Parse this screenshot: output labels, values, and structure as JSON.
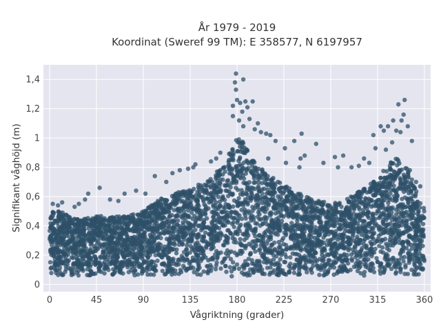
{
  "chart_data": {
    "type": "scatter",
    "title_line1": "År 1979 - 2019",
    "title_line2": "Koordinat (Sweref 99 TM): E 358577, N 6197957",
    "xlabel": "Vågriktning (grader)",
    "ylabel": "Signifikant våghöjd (m)",
    "xlim": [
      -6,
      366
    ],
    "ylim": [
      -0.05,
      1.5
    ],
    "x_ticks": [
      0,
      45,
      90,
      135,
      180,
      225,
      270,
      315,
      360
    ],
    "x_tick_labels": [
      "0",
      "45",
      "90",
      "135",
      "180",
      "225",
      "270",
      "315",
      "360"
    ],
    "y_ticks": [
      0,
      0.2,
      0.4,
      0.6,
      0.8,
      1,
      1.2,
      1.4
    ],
    "y_tick_labels": [
      "0",
      "0,2",
      "0,4",
      "0,6",
      "0,8",
      "1",
      "1,2",
      "1,4"
    ],
    "grid": true,
    "marker_color": "#2e5068",
    "plot_background": "#e5e5f0",
    "envelope": {
      "x": [
        0,
        10,
        20,
        30,
        45,
        60,
        75,
        90,
        105,
        120,
        135,
        150,
        165,
        175,
        180,
        185,
        195,
        210,
        225,
        240,
        255,
        270,
        285,
        300,
        315,
        325,
        335,
        345,
        355,
        360
      ],
      "y_max": [
        0.52,
        0.5,
        0.46,
        0.45,
        0.47,
        0.46,
        0.47,
        0.5,
        0.58,
        0.62,
        0.66,
        0.7,
        0.8,
        0.95,
        1.0,
        0.98,
        0.85,
        0.75,
        0.68,
        0.62,
        0.58,
        0.55,
        0.58,
        0.65,
        0.72,
        0.82,
        0.88,
        0.78,
        0.58,
        0.52
      ],
      "y_min": [
        0.06,
        0.06,
        0.06,
        0.06,
        0.06,
        0.06,
        0.06,
        0.06,
        0.06,
        0.06,
        0.06,
        0.06,
        0.06,
        0.05,
        0.04,
        0.05,
        0.05,
        0.06,
        0.06,
        0.06,
        0.06,
        0.06,
        0.06,
        0.06,
        0.06,
        0.06,
        0.06,
        0.06,
        0.06,
        0.06
      ]
    },
    "outliers": [
      {
        "x": 179,
        "y": 1.44
      },
      {
        "x": 186,
        "y": 1.4
      },
      {
        "x": 178,
        "y": 1.38
      },
      {
        "x": 179,
        "y": 1.33
      },
      {
        "x": 180,
        "y": 1.26
      },
      {
        "x": 183,
        "y": 1.24
      },
      {
        "x": 188,
        "y": 1.25
      },
      {
        "x": 195,
        "y": 1.25
      },
      {
        "x": 190,
        "y": 1.21
      },
      {
        "x": 176,
        "y": 1.22
      },
      {
        "x": 185,
        "y": 1.18
      },
      {
        "x": 176,
        "y": 1.15
      },
      {
        "x": 192,
        "y": 1.13
      },
      {
        "x": 182,
        "y": 1.12
      },
      {
        "x": 200,
        "y": 1.1
      },
      {
        "x": 186,
        "y": 1.08
      },
      {
        "x": 197,
        "y": 1.06
      },
      {
        "x": 203,
        "y": 1.04
      },
      {
        "x": 212,
        "y": 1.02
      },
      {
        "x": 208,
        "y": 1.03
      },
      {
        "x": 242,
        "y": 1.03
      },
      {
        "x": 217,
        "y": 0.98
      },
      {
        "x": 235,
        "y": 0.98
      },
      {
        "x": 256,
        "y": 0.96
      },
      {
        "x": 226,
        "y": 0.93
      },
      {
        "x": 245,
        "y": 0.88
      },
      {
        "x": 241,
        "y": 0.86
      },
      {
        "x": 274,
        "y": 0.87
      },
      {
        "x": 282,
        "y": 0.88
      },
      {
        "x": 210,
        "y": 0.86
      },
      {
        "x": 227,
        "y": 0.83
      },
      {
        "x": 240,
        "y": 0.8
      },
      {
        "x": 263,
        "y": 0.83
      },
      {
        "x": 277,
        "y": 0.8
      },
      {
        "x": 290,
        "y": 0.8
      },
      {
        "x": 297,
        "y": 0.81
      },
      {
        "x": 307,
        "y": 0.83
      },
      {
        "x": 302,
        "y": 0.86
      },
      {
        "x": 311,
        "y": 1.02
      },
      {
        "x": 318,
        "y": 1.08
      },
      {
        "x": 321,
        "y": 1.05
      },
      {
        "x": 325,
        "y": 1.08
      },
      {
        "x": 330,
        "y": 1.12
      },
      {
        "x": 335,
        "y": 1.23
      },
      {
        "x": 341,
        "y": 1.26
      },
      {
        "x": 340,
        "y": 1.16
      },
      {
        "x": 338,
        "y": 1.12
      },
      {
        "x": 333,
        "y": 1.05
      },
      {
        "x": 337,
        "y": 1.04
      },
      {
        "x": 344,
        "y": 1.08
      },
      {
        "x": 348,
        "y": 0.98
      },
      {
        "x": 329,
        "y": 0.97
      },
      {
        "x": 323,
        "y": 0.92
      },
      {
        "x": 313,
        "y": 0.93
      },
      {
        "x": 346,
        "y": 0.78
      },
      {
        "x": 352,
        "y": 0.7
      },
      {
        "x": 356,
        "y": 0.67
      },
      {
        "x": 3,
        "y": 0.55
      },
      {
        "x": 8,
        "y": 0.54
      },
      {
        "x": 12,
        "y": 0.56
      },
      {
        "x": 24,
        "y": 0.53
      },
      {
        "x": 28,
        "y": 0.55
      },
      {
        "x": 34,
        "y": 0.58
      },
      {
        "x": 37,
        "y": 0.62
      },
      {
        "x": 48,
        "y": 0.66
      },
      {
        "x": 58,
        "y": 0.58
      },
      {
        "x": 66,
        "y": 0.57
      },
      {
        "x": 72,
        "y": 0.62
      },
      {
        "x": 83,
        "y": 0.64
      },
      {
        "x": 92,
        "y": 0.62
      },
      {
        "x": 101,
        "y": 0.74
      },
      {
        "x": 112,
        "y": 0.7
      },
      {
        "x": 118,
        "y": 0.76
      },
      {
        "x": 125,
        "y": 0.78
      },
      {
        "x": 133,
        "y": 0.79
      },
      {
        "x": 138,
        "y": 0.8
      },
      {
        "x": 140,
        "y": 0.82
      },
      {
        "x": 155,
        "y": 0.84
      },
      {
        "x": 160,
        "y": 0.86
      },
      {
        "x": 164,
        "y": 0.9
      }
    ]
  }
}
